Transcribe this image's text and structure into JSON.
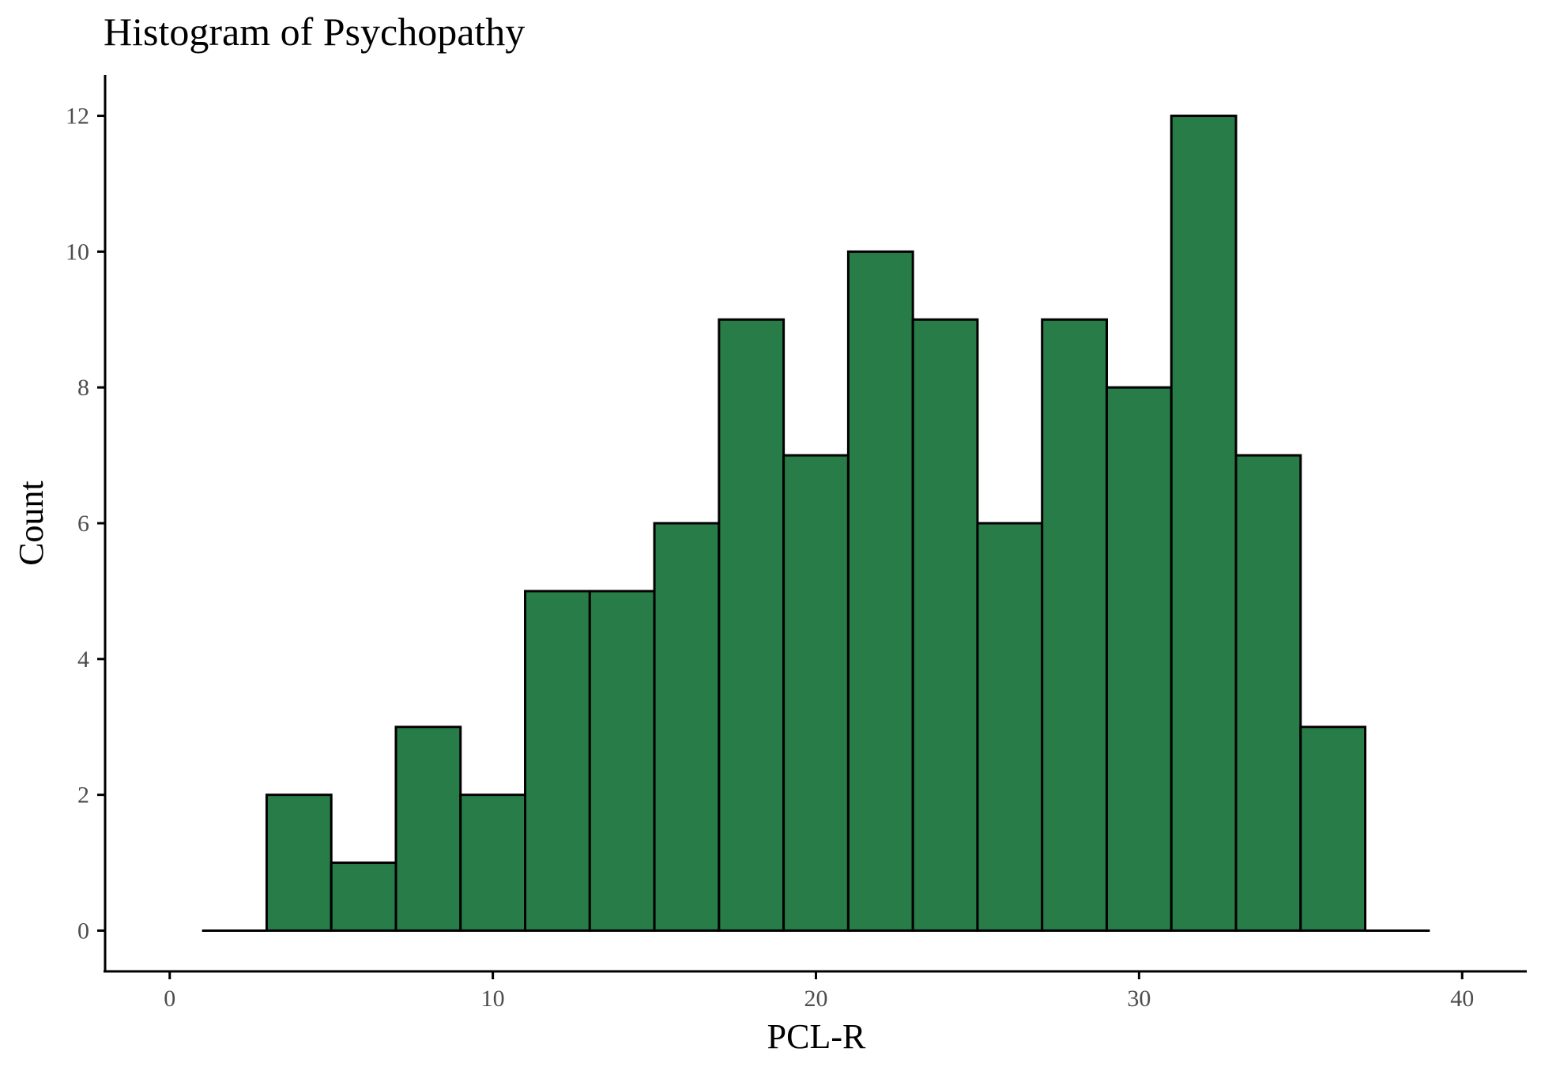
{
  "chart_data": {
    "type": "bar",
    "title": "Histogram of Psychopathy",
    "xlabel": "PCL-R",
    "ylabel": "Count",
    "xlim": [
      -2,
      42
    ],
    "ylim": [
      -0.6,
      12.6
    ],
    "xticks": [
      0,
      10,
      20,
      30,
      40
    ],
    "yticks": [
      0,
      2,
      4,
      6,
      8,
      10,
      12
    ],
    "bin_width": 2,
    "bins": [
      {
        "x0": 1,
        "x1": 3,
        "count": 0
      },
      {
        "x0": 3,
        "x1": 5,
        "count": 2
      },
      {
        "x0": 5,
        "x1": 7,
        "count": 1
      },
      {
        "x0": 7,
        "x1": 9,
        "count": 3
      },
      {
        "x0": 9,
        "x1": 11,
        "count": 2
      },
      {
        "x0": 11,
        "x1": 13,
        "count": 5
      },
      {
        "x0": 13,
        "x1": 15,
        "count": 5
      },
      {
        "x0": 15,
        "x1": 17,
        "count": 6
      },
      {
        "x0": 17,
        "x1": 19,
        "count": 9
      },
      {
        "x0": 19,
        "x1": 21,
        "count": 7
      },
      {
        "x0": 21,
        "x1": 23,
        "count": 10
      },
      {
        "x0": 23,
        "x1": 25,
        "count": 9
      },
      {
        "x0": 25,
        "x1": 27,
        "count": 6
      },
      {
        "x0": 27,
        "x1": 29,
        "count": 9
      },
      {
        "x0": 29,
        "x1": 31,
        "count": 8
      },
      {
        "x0": 31,
        "x1": 33,
        "count": 12
      },
      {
        "x0": 33,
        "x1": 35,
        "count": 7
      },
      {
        "x0": 35,
        "x1": 37,
        "count": 3
      },
      {
        "x0": 37,
        "x1": 39,
        "count": 0
      }
    ],
    "bar_fill": "#277C47",
    "bar_stroke": "#000000",
    "grid": false,
    "legend": "none"
  }
}
